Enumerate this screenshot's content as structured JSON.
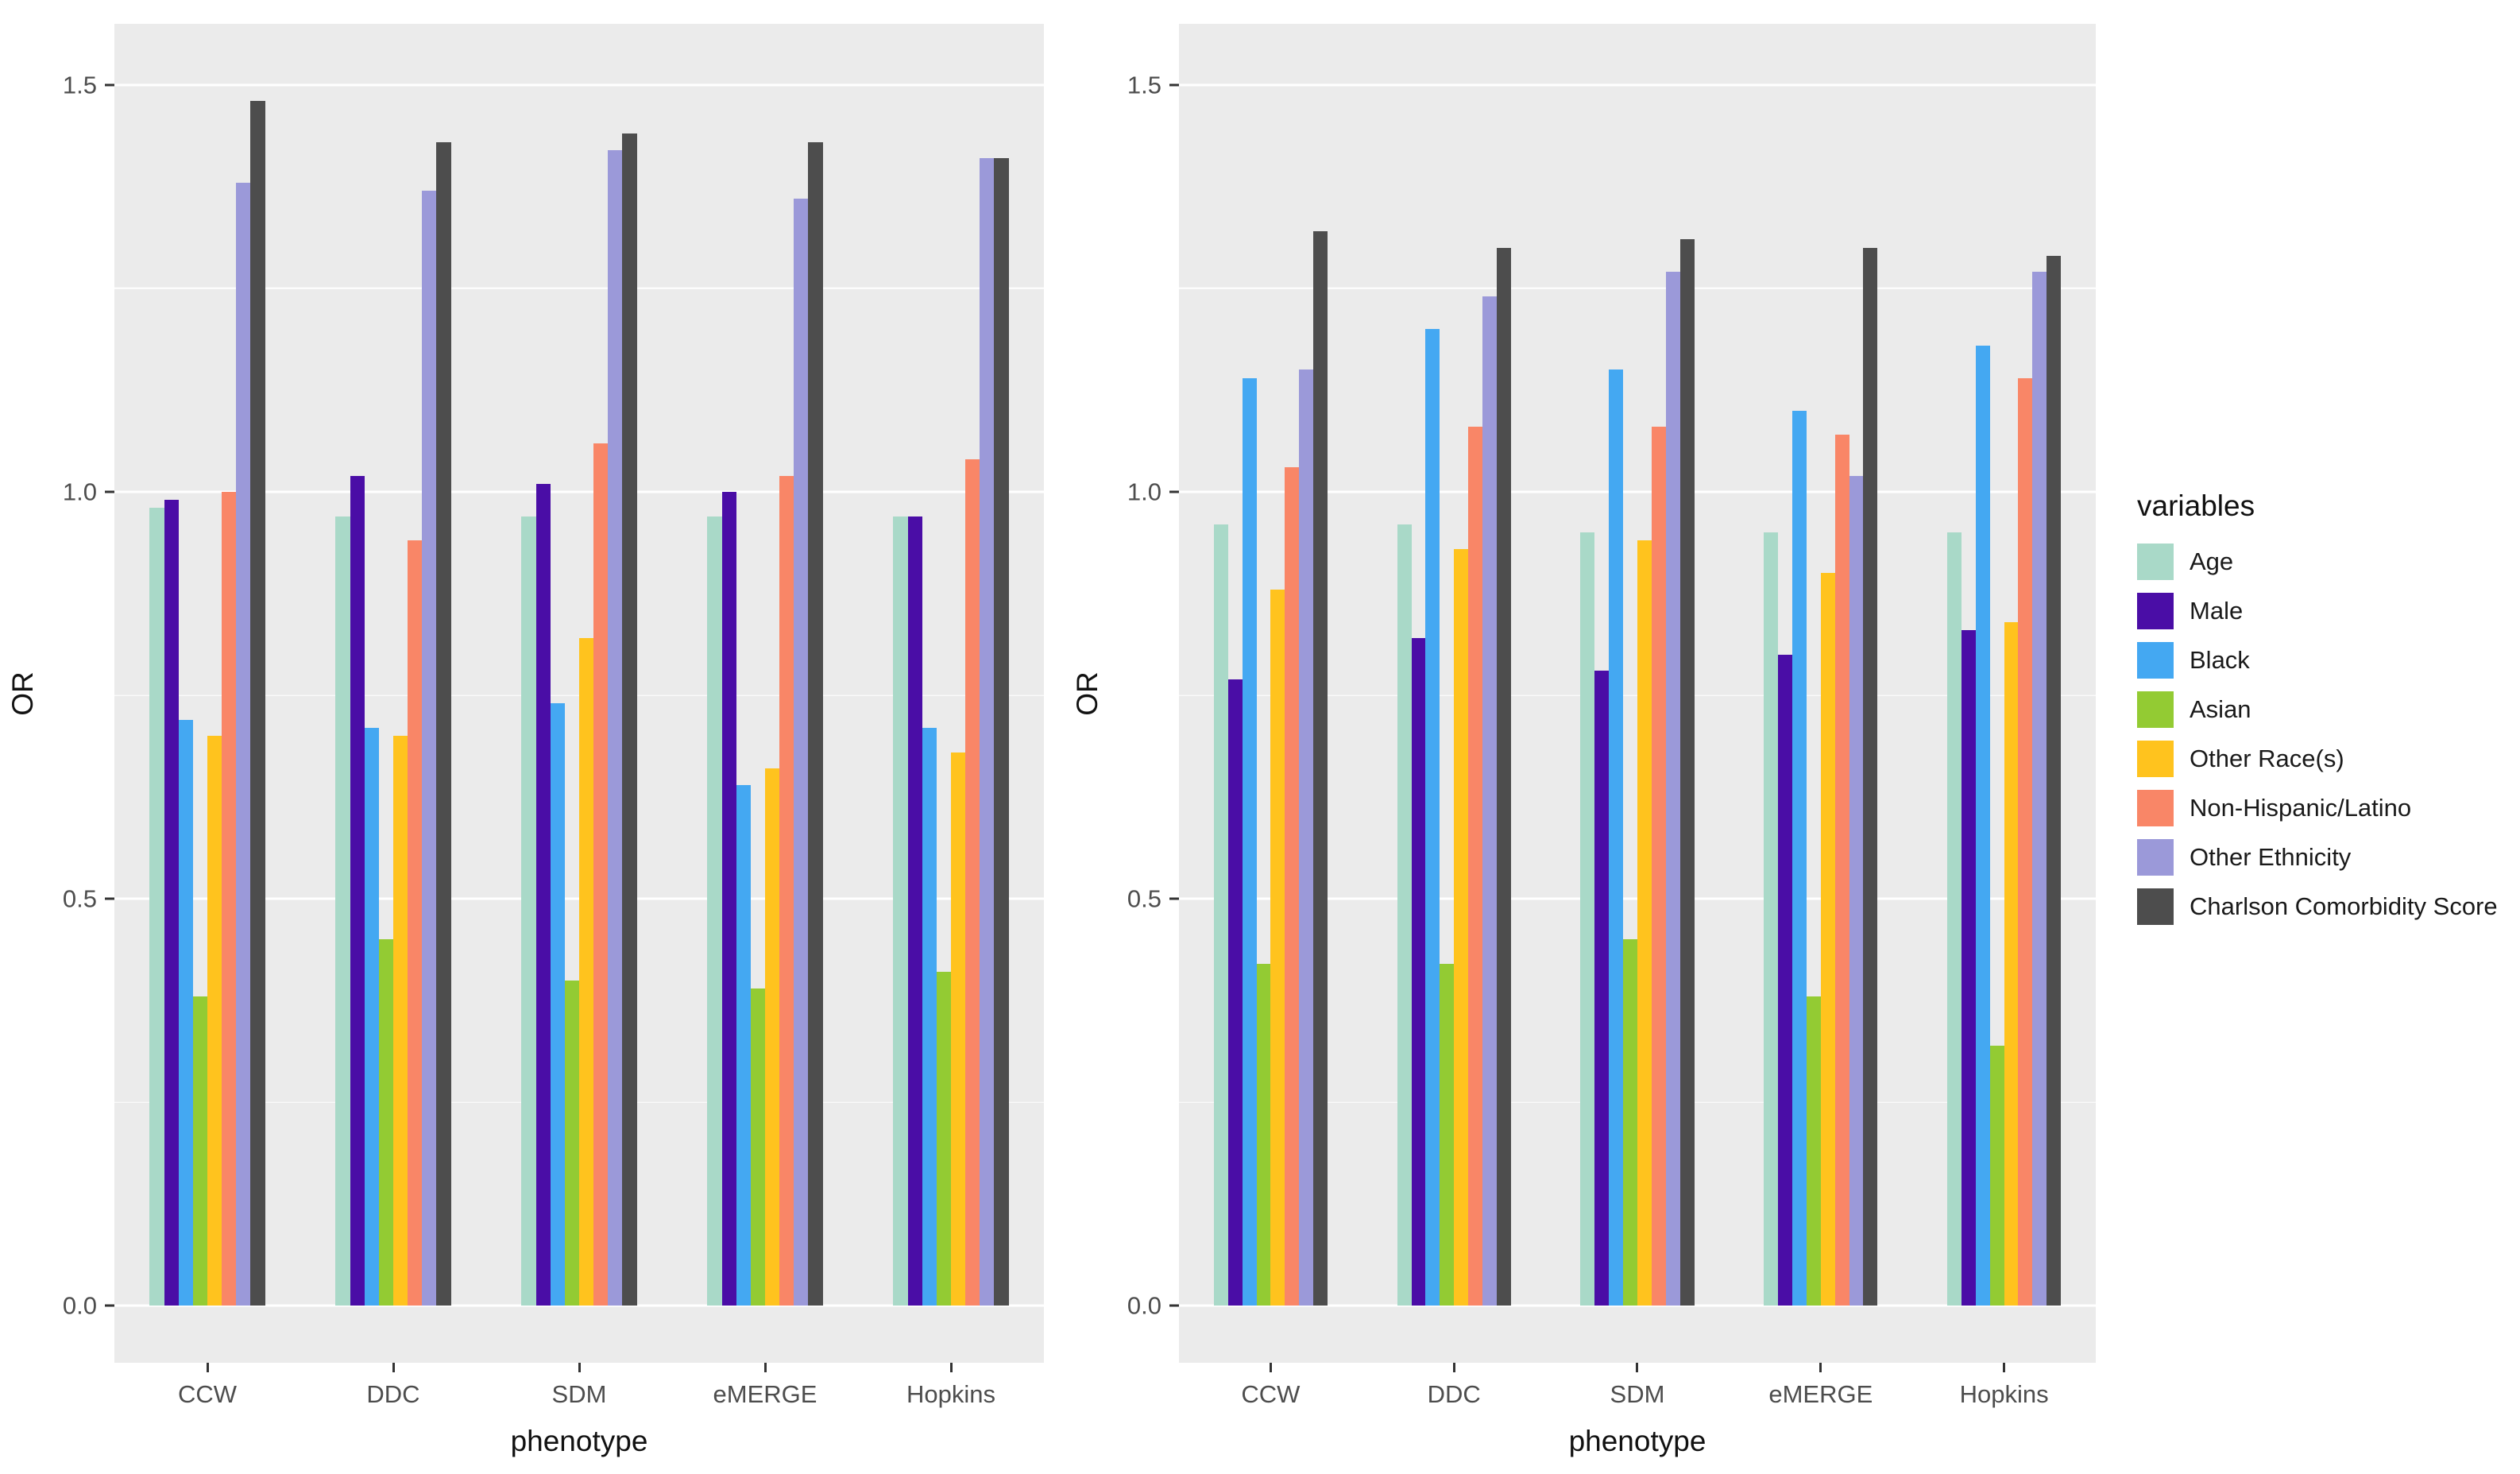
{
  "legend": {
    "title": "variables",
    "items": [
      {
        "name": "Age",
        "color": "#a9d9c8"
      },
      {
        "name": "Male",
        "color": "#4a0da6"
      },
      {
        "name": "Black",
        "color": "#44a8f2"
      },
      {
        "name": "Asian",
        "color": "#93cb33"
      },
      {
        "name": "Other Race(s)",
        "color": "#ffc31e"
      },
      {
        "name": "Non-Hispanic/Latino",
        "color": "#f98667"
      },
      {
        "name": "Other Ethnicity",
        "color": "#9b99d9"
      },
      {
        "name": "Charlson Comorbidity Score",
        "color": "#4d4d4d"
      }
    ]
  },
  "chart_data": [
    {
      "type": "bar",
      "title": "",
      "xlabel": "phenotype",
      "ylabel": "OR",
      "ylim": [
        0,
        1.5
      ],
      "ydomain": [
        -0.07,
        1.575
      ],
      "yticks": [
        0.0,
        0.5,
        1.0,
        1.5
      ],
      "yticks_minor": [
        0.25,
        0.75,
        1.25
      ],
      "grid": true,
      "legend_position": "right",
      "categories": [
        "CCW",
        "DDC",
        "SDM",
        "eMERGE",
        "Hopkins"
      ],
      "series": [
        {
          "name": "Age",
          "color": "#a9d9c8",
          "values": [
            0.98,
            0.97,
            0.97,
            0.97,
            0.97
          ]
        },
        {
          "name": "Male",
          "color": "#4a0da6",
          "values": [
            0.99,
            1.02,
            1.01,
            1.0,
            0.97
          ]
        },
        {
          "name": "Black",
          "color": "#44a8f2",
          "values": [
            0.72,
            0.71,
            0.74,
            0.64,
            0.71
          ]
        },
        {
          "name": "Asian",
          "color": "#93cb33",
          "values": [
            0.38,
            0.45,
            0.4,
            0.39,
            0.41
          ]
        },
        {
          "name": "Other Race(s)",
          "color": "#ffc31e",
          "values": [
            0.7,
            0.7,
            0.82,
            0.66,
            0.68
          ]
        },
        {
          "name": "Non-Hispanic/Latino",
          "color": "#f98667",
          "values": [
            1.0,
            0.94,
            1.06,
            1.02,
            1.04
          ]
        },
        {
          "name": "Other Ethnicity",
          "color": "#9b99d9",
          "values": [
            1.38,
            1.37,
            1.42,
            1.36,
            1.41
          ]
        },
        {
          "name": "Charlson Comorbidity Score",
          "color": "#4d4d4d",
          "values": [
            1.48,
            1.43,
            1.44,
            1.43,
            1.41
          ]
        }
      ]
    },
    {
      "type": "bar",
      "title": "",
      "xlabel": "phenotype",
      "ylabel": "OR",
      "ylim": [
        0,
        1.5
      ],
      "ydomain": [
        -0.07,
        1.575
      ],
      "yticks": [
        0.0,
        0.5,
        1.0,
        1.5
      ],
      "yticks_minor": [
        0.25,
        0.75,
        1.25
      ],
      "grid": true,
      "legend_position": "right",
      "categories": [
        "CCW",
        "DDC",
        "SDM",
        "eMERGE",
        "Hopkins"
      ],
      "series": [
        {
          "name": "Age",
          "color": "#a9d9c8",
          "values": [
            0.96,
            0.96,
            0.95,
            0.95,
            0.95
          ]
        },
        {
          "name": "Male",
          "color": "#4a0da6",
          "values": [
            0.77,
            0.82,
            0.78,
            0.8,
            0.83
          ]
        },
        {
          "name": "Black",
          "color": "#44a8f2",
          "values": [
            1.14,
            1.2,
            1.15,
            1.1,
            1.18
          ]
        },
        {
          "name": "Asian",
          "color": "#93cb33",
          "values": [
            0.42,
            0.42,
            0.45,
            0.38,
            0.32
          ]
        },
        {
          "name": "Other Race(s)",
          "color": "#ffc31e",
          "values": [
            0.88,
            0.93,
            0.94,
            0.9,
            0.84
          ]
        },
        {
          "name": "Non-Hispanic/Latino",
          "color": "#f98667",
          "values": [
            1.03,
            1.08,
            1.08,
            1.07,
            1.14
          ]
        },
        {
          "name": "Other Ethnicity",
          "color": "#9b99d9",
          "values": [
            1.15,
            1.24,
            1.27,
            1.02,
            1.27
          ]
        },
        {
          "name": "Charlson Comorbidity Score",
          "color": "#4d4d4d",
          "values": [
            1.32,
            1.3,
            1.31,
            1.3,
            1.29
          ]
        }
      ]
    }
  ]
}
